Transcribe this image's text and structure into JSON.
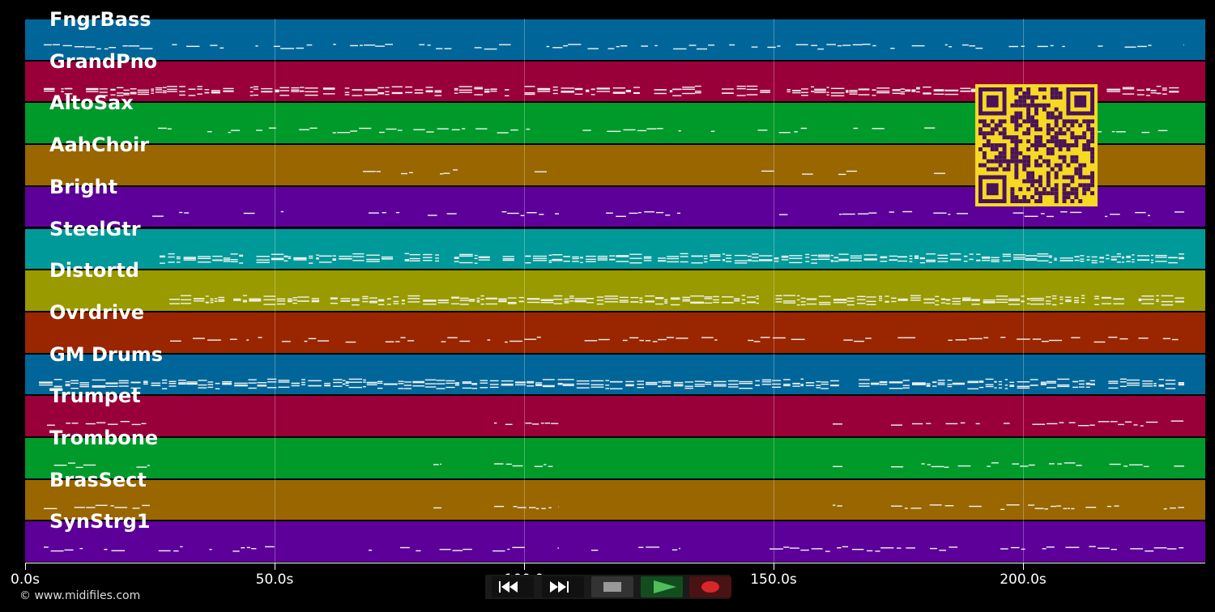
{
  "tracks": [
    {
      "label": "FngrBass",
      "color": "#006699"
    },
    {
      "label": "GrandPno",
      "color": "#99003a"
    },
    {
      "label": "AltoSax",
      "color": "#009a2a"
    },
    {
      "label": "AahChoir",
      "color": "#996600"
    },
    {
      "label": "Bright",
      "color": "#5c0099"
    },
    {
      "label": "SteelGtr",
      "color": "#009999"
    },
    {
      "label": "Distortd",
      "color": "#999a00"
    },
    {
      "label": "Ovrdrive",
      "color": "#992600"
    },
    {
      "label": "GM Drums",
      "color": "#006699"
    },
    {
      "label": "Trumpet",
      "color": "#99003a"
    },
    {
      "label": "Trombone",
      "color": "#009a2a"
    },
    {
      "label": "BrasSect",
      "color": "#996600"
    },
    {
      "label": "SynStrg1",
      "color": "#5c0099"
    }
  ],
  "x_axis": {
    "ticks": [
      "0.0s",
      "50.0s",
      "100.0",
      "150.0s",
      "200.0s"
    ]
  },
  "transport": {
    "buttons": [
      {
        "name": "rewind-button",
        "icon": "rewind-icon"
      },
      {
        "name": "fast-forward-button",
        "icon": "fast-forward-icon"
      },
      {
        "name": "stop-button",
        "icon": "stop-icon"
      },
      {
        "name": "play-button",
        "icon": "play-icon"
      },
      {
        "name": "record-button",
        "icon": "record-icon"
      }
    ]
  },
  "copyright": "© www.midifiles.com",
  "qr_code": {
    "icon": "qr-code-icon",
    "color": "#f5d923",
    "dark": "#4a1258"
  }
}
